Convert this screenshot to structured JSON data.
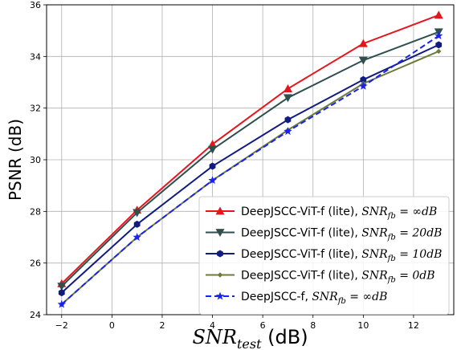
{
  "chart_data": {
    "type": "line",
    "xlabel_main": "SNR",
    "xlabel_sub": "test",
    "xlabel_unit": " (dB)",
    "ylabel": "PSNR (dB)",
    "xlim": [
      -2.6,
      13.6
    ],
    "ylim": [
      24.0,
      36.0
    ],
    "xticks": [
      -2,
      0,
      2,
      4,
      6,
      8,
      10,
      12
    ],
    "yticks": [
      24,
      26,
      28,
      30,
      32,
      34,
      36
    ],
    "grid": true,
    "legend_position": "lower-right",
    "series": [
      {
        "legend_prefix": "DeepJSCC-ViT-f (lite), ",
        "legend_var": "SNR",
        "legend_sub": "fb",
        "legend_value": " = ∞dB",
        "color": "#e8141c",
        "marker": "triangle-up",
        "linestyle": "solid",
        "x": [
          -2,
          1,
          4,
          7,
          10,
          13
        ],
        "y": [
          25.2,
          28.05,
          30.6,
          32.75,
          34.5,
          35.6
        ]
      },
      {
        "legend_prefix": "DeepJSCC-ViT-f (lite), ",
        "legend_var": "SNR",
        "legend_sub": "fb",
        "legend_value": " = 20dB",
        "color": "#2f4f4f",
        "marker": "triangle-down",
        "linestyle": "solid",
        "x": [
          -2,
          1,
          4,
          7,
          10,
          13
        ],
        "y": [
          25.1,
          27.95,
          30.4,
          32.4,
          33.85,
          34.95
        ]
      },
      {
        "legend_prefix": "DeepJSCC-ViT-f (lite), ",
        "legend_var": "SNR",
        "legend_sub": "fb",
        "legend_value": " = 10dB",
        "color": "#101c80",
        "marker": "hexagon",
        "linestyle": "solid",
        "x": [
          -2,
          1,
          4,
          7,
          10,
          13
        ],
        "y": [
          24.85,
          27.5,
          29.75,
          31.55,
          33.1,
          34.45
        ]
      },
      {
        "legend_prefix": "DeepJSCC-ViT-f (lite), ",
        "legend_var": "SNR",
        "legend_sub": "fb",
        "legend_value": " = 0dB",
        "color": "#6b7b3a",
        "marker": "small-diamond",
        "linestyle": "solid",
        "x": [
          -2,
          1,
          4,
          7,
          10,
          13
        ],
        "y": [
          24.4,
          27.0,
          29.2,
          31.15,
          32.95,
          34.2
        ]
      },
      {
        "legend_prefix": "DeepJSCC-f, ",
        "legend_var": "SNR",
        "legend_sub": "fb",
        "legend_value": " = ∞dB",
        "color": "#1a22f0",
        "marker": "star",
        "linestyle": "dashed",
        "x": [
          -2,
          1,
          4,
          7,
          10,
          13
        ],
        "y": [
          24.4,
          27.0,
          29.2,
          31.1,
          32.85,
          34.8
        ]
      }
    ]
  }
}
